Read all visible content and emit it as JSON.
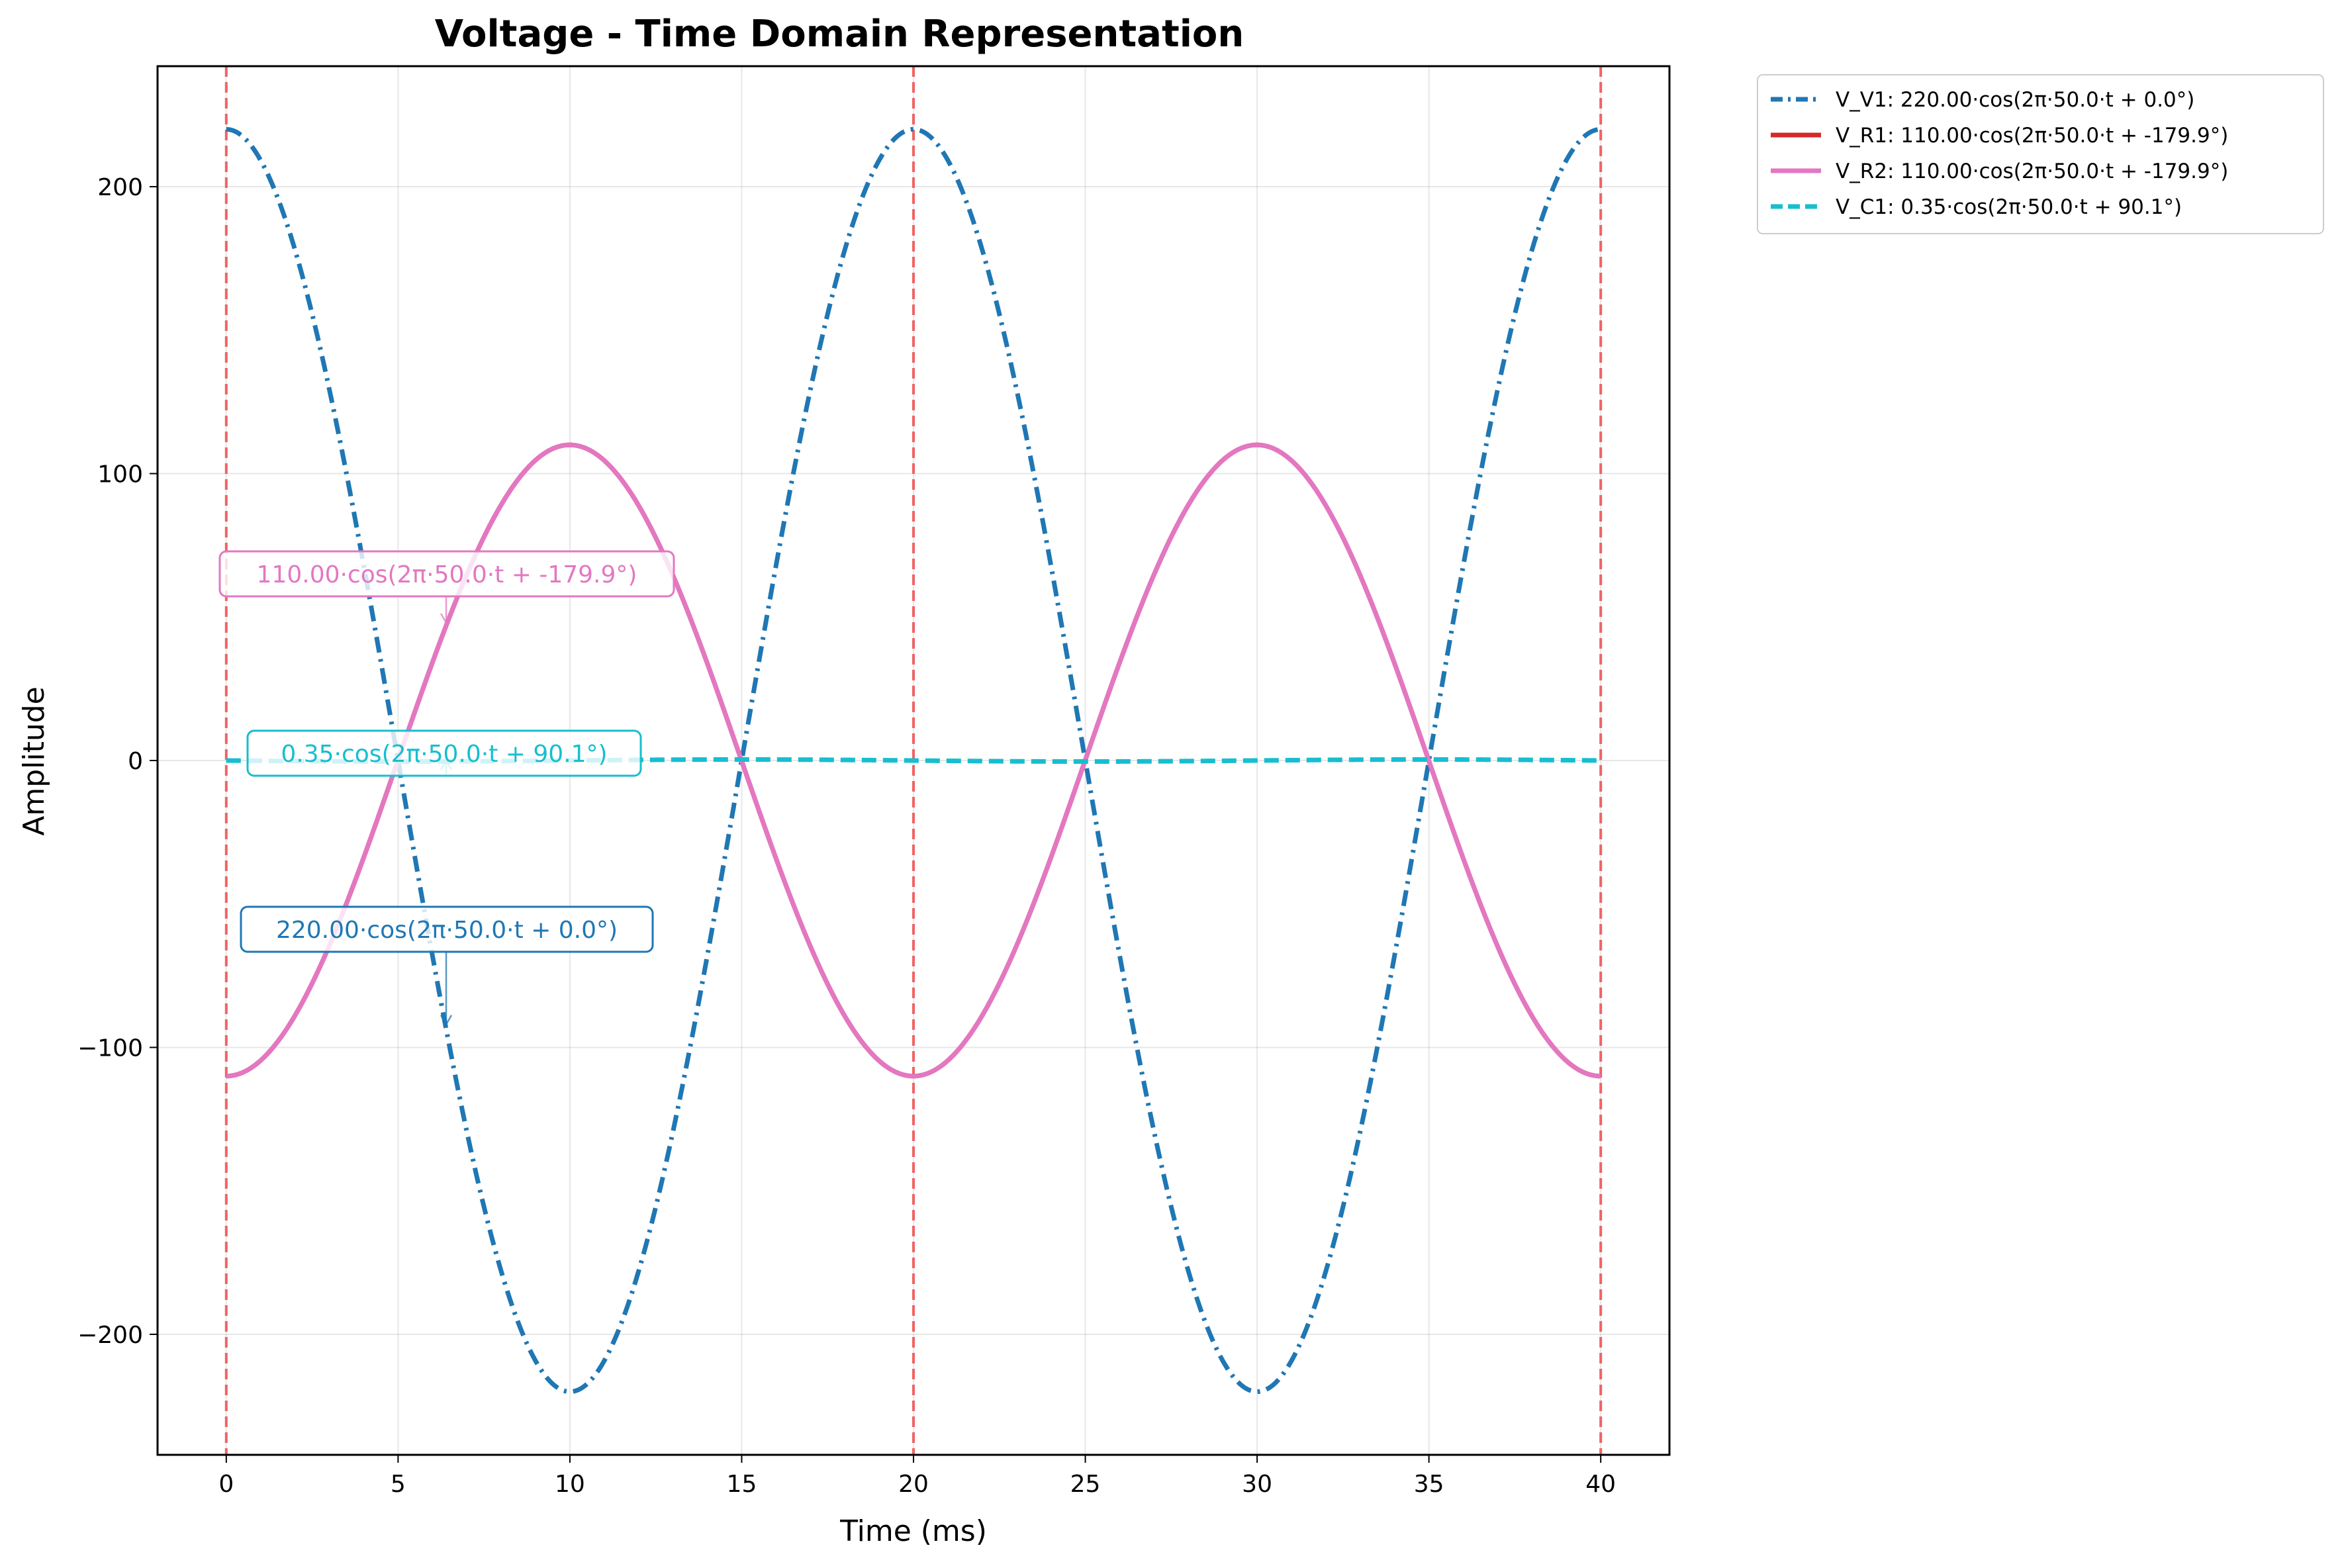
{
  "chart_data": {
    "type": "line",
    "title": "Voltage - Time Domain Representation",
    "xlabel": "Time (ms)",
    "ylabel": "Amplitude",
    "xlim": [
      -2,
      42
    ],
    "ylim": [
      -242,
      242
    ],
    "xticks": [
      0,
      5,
      10,
      15,
      20,
      25,
      30,
      35,
      40
    ],
    "xtick_labels": [
      "0",
      "5",
      "10",
      "15",
      "20",
      "25",
      "30",
      "35",
      "40"
    ],
    "yticks": [
      -200,
      -100,
      0,
      100,
      200
    ],
    "ytick_labels": [
      "−200",
      "−100",
      "0",
      "100",
      "200"
    ],
    "grid": true,
    "legend_position": "outside-top-right",
    "frequency_hz": 50.0,
    "time_range_ms": [
      0,
      40
    ],
    "series": [
      {
        "name": "V_V1: 220.00·cos(2π·50.0·t + 0.0°)",
        "amplitude": 220.0,
        "phase_deg": 0.0,
        "color": "#1f77b4",
        "linestyle": "dashdot"
      },
      {
        "name": "V_R1: 110.00·cos(2π·50.0·t + -179.9°)",
        "amplitude": 110.0,
        "phase_deg": -179.9,
        "color": "#d62728",
        "linestyle": "solid"
      },
      {
        "name": "V_R2: 110.00·cos(2π·50.0·t + -179.9°)",
        "amplitude": 110.0,
        "phase_deg": -179.9,
        "color": "#e377c2",
        "linestyle": "solid"
      },
      {
        "name": "V_C1: 0.35·cos(2π·50.0·t + 90.1°)",
        "amplitude": 0.35,
        "phase_deg": 90.1,
        "color": "#17becf",
        "linestyle": "dashed"
      }
    ],
    "annotations": [
      {
        "text": "110.00·cos(2π·50.0·t + -179.9°)",
        "color": "#e377c2",
        "target": [
          6.4,
          48
        ]
      },
      {
        "text": "0.35·cos(2π·50.0·t + 90.1°)",
        "color": "#17becf",
        "target": [
          6.4,
          0
        ]
      },
      {
        "text": "220.00·cos(2π·50.0·t + 0.0°)",
        "color": "#1f77b4",
        "target": [
          6.4,
          -92
        ]
      }
    ],
    "period_markers_ms": [
      0,
      20,
      40
    ],
    "period_marker_color": "#f06464"
  }
}
